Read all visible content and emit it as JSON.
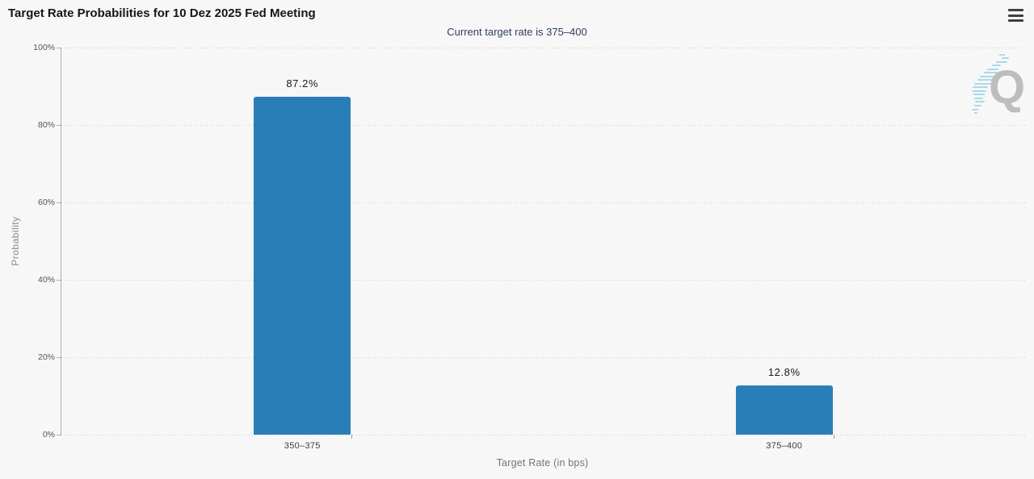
{
  "chart_data": {
    "type": "bar",
    "title": "Target Rate Probabilities for 10 Dez 2025 Fed Meeting",
    "subtitle": "Current target rate is 375–400",
    "categories": [
      "350–375",
      "375–400"
    ],
    "values": [
      87.2,
      12.8
    ],
    "value_labels": [
      "87.2%",
      "12.8%"
    ],
    "xlabel": "Target Rate (in bps)",
    "ylabel": "Probability",
    "ylim": [
      0,
      100
    ],
    "yticks": [
      0,
      20,
      40,
      60,
      80,
      100
    ],
    "ytick_suffix": "%",
    "grid": "dotted-horizontal-major",
    "legend": "none",
    "bar_color": "#2a7eb8"
  },
  "toolbar": {
    "menu_icon": "hamburger-menu"
  },
  "watermark": {
    "letter": "Q"
  },
  "colors": {
    "background": "#f7f7f7",
    "bar": "#2a7eb8",
    "title": "#161616",
    "subtitle": "#31405f",
    "axis_line": "#b0b0b0",
    "gridline": "#c9c9c9",
    "watermark_letter": "#bdbdbd",
    "watermark_dashes": "#a9d9ea"
  }
}
